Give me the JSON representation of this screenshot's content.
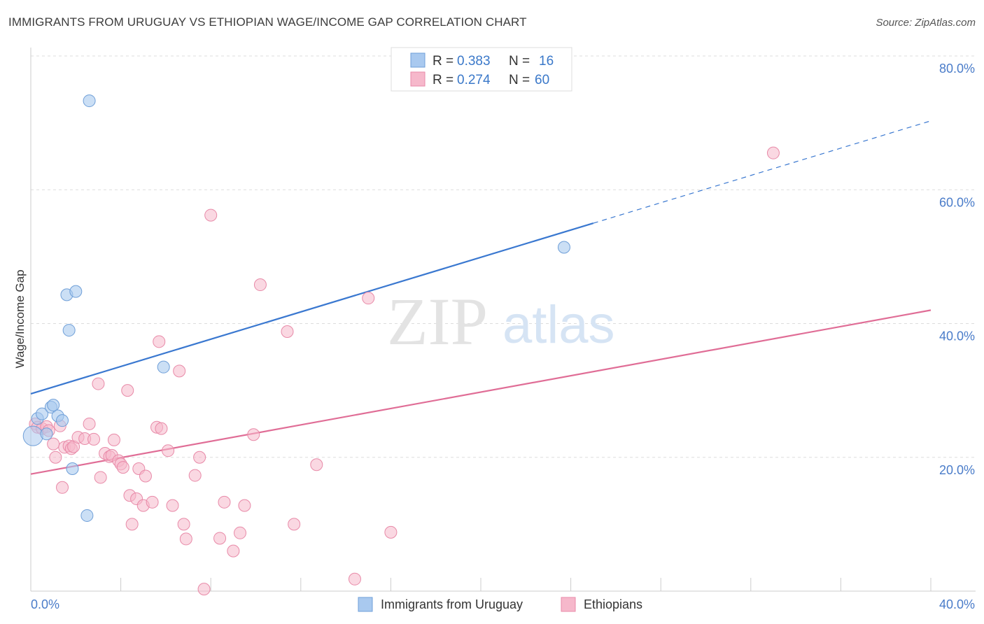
{
  "title": "IMMIGRANTS FROM URUGUAY VS ETHIOPIAN WAGE/INCOME GAP CORRELATION CHART",
  "source": "Source: ZipAtlas.com",
  "watermark": {
    "zip": "ZIP",
    "atlas": "atlas"
  },
  "colors": {
    "blue_fill": "#a9c9ef",
    "blue_stroke": "#6f9fd8",
    "blue_line": "#3a78d0",
    "pink_fill": "#f6b8cb",
    "pink_stroke": "#e88aa8",
    "pink_line": "#e06d96",
    "grid": "#dddddd",
    "tick_label": "#4a7cc9"
  },
  "chart_data": {
    "type": "scatter",
    "title": "IMMIGRANTS FROM URUGUAY VS ETHIOPIAN WAGE/INCOME GAP CORRELATION CHART",
    "xlabel": "",
    "ylabel": "Wage/Income Gap",
    "xlim": [
      0,
      40
    ],
    "ylim": [
      0,
      80
    ],
    "x_tick_labels": [
      "0.0%",
      "40.0%"
    ],
    "y_ticks": [
      20,
      40,
      60,
      80
    ],
    "y_tick_labels": [
      "20.0%",
      "40.0%",
      "60.0%",
      "80.0%"
    ],
    "grid": true,
    "legend_position": "top-center",
    "legend": [
      {
        "name": "Immigrants from Uruguay",
        "r_label": "R =",
        "r_value": "0.383",
        "n_label": "N =",
        "n_value": "16"
      },
      {
        "name": "Ethiopians",
        "r_label": "R =",
        "r_value": "0.274",
        "n_label": "N =",
        "n_value": "60"
      }
    ],
    "series": [
      {
        "name": "Immigrants from Uruguay",
        "points": [
          [
            0.1,
            23.2
          ],
          [
            0.3,
            25.8
          ],
          [
            0.5,
            26.5
          ],
          [
            0.7,
            23.5
          ],
          [
            0.9,
            27.5
          ],
          [
            1.0,
            27.8
          ],
          [
            1.2,
            26.2
          ],
          [
            1.4,
            25.5
          ],
          [
            1.6,
            44.3
          ],
          [
            2.0,
            44.8
          ],
          [
            1.7,
            39.0
          ],
          [
            1.85,
            18.3
          ],
          [
            2.5,
            11.3
          ],
          [
            2.6,
            73.3
          ],
          [
            5.9,
            33.5
          ],
          [
            23.7,
            51.4
          ]
        ],
        "trend": {
          "x0": 0,
          "y0": 29.5,
          "x1": 25,
          "y1": 55.0,
          "dash_x1": 40,
          "dash_y1": 70.3
        }
      },
      {
        "name": "Ethiopians",
        "points": [
          [
            0.2,
            25.0
          ],
          [
            0.3,
            24.5
          ],
          [
            0.5,
            24.3
          ],
          [
            0.7,
            24.6
          ],
          [
            0.8,
            24.0
          ],
          [
            1.0,
            22.0
          ],
          [
            1.1,
            20.0
          ],
          [
            1.3,
            24.7
          ],
          [
            1.4,
            15.5
          ],
          [
            1.5,
            21.5
          ],
          [
            1.7,
            21.7
          ],
          [
            1.8,
            21.3
          ],
          [
            1.9,
            21.6
          ],
          [
            2.1,
            23.0
          ],
          [
            2.4,
            22.8
          ],
          [
            2.6,
            25.0
          ],
          [
            2.8,
            22.7
          ],
          [
            3.0,
            31.0
          ],
          [
            3.1,
            17.0
          ],
          [
            3.3,
            20.6
          ],
          [
            3.5,
            20.1
          ],
          [
            3.6,
            20.3
          ],
          [
            3.7,
            22.6
          ],
          [
            3.9,
            19.5
          ],
          [
            4.0,
            19.0
          ],
          [
            4.1,
            18.5
          ],
          [
            4.3,
            30.0
          ],
          [
            4.4,
            14.3
          ],
          [
            4.7,
            13.8
          ],
          [
            4.8,
            18.3
          ],
          [
            5.0,
            12.8
          ],
          [
            5.1,
            17.2
          ],
          [
            5.4,
            13.3
          ],
          [
            5.6,
            24.5
          ],
          [
            5.8,
            24.3
          ],
          [
            5.7,
            37.3
          ],
          [
            6.1,
            21.0
          ],
          [
            6.3,
            12.8
          ],
          [
            6.6,
            32.9
          ],
          [
            6.9,
            7.8
          ],
          [
            6.8,
            10.0
          ],
          [
            7.3,
            17.3
          ],
          [
            7.5,
            20.0
          ],
          [
            7.7,
            0.3
          ],
          [
            8.4,
            7.9
          ],
          [
            8.6,
            13.3
          ],
          [
            9.0,
            6.0
          ],
          [
            9.3,
            8.7
          ],
          [
            9.5,
            12.8
          ],
          [
            9.9,
            23.4
          ],
          [
            10.2,
            45.8
          ],
          [
            11.4,
            38.8
          ],
          [
            11.7,
            10.0
          ],
          [
            12.7,
            18.9
          ],
          [
            14.4,
            1.8
          ],
          [
            15.0,
            43.8
          ],
          [
            16.0,
            8.8
          ],
          [
            8.0,
            56.2
          ],
          [
            33.0,
            65.5
          ],
          [
            4.5,
            10.0
          ]
        ],
        "trend": {
          "x0": 0,
          "y0": 17.5,
          "x1": 40,
          "y1": 42.0
        }
      }
    ]
  }
}
